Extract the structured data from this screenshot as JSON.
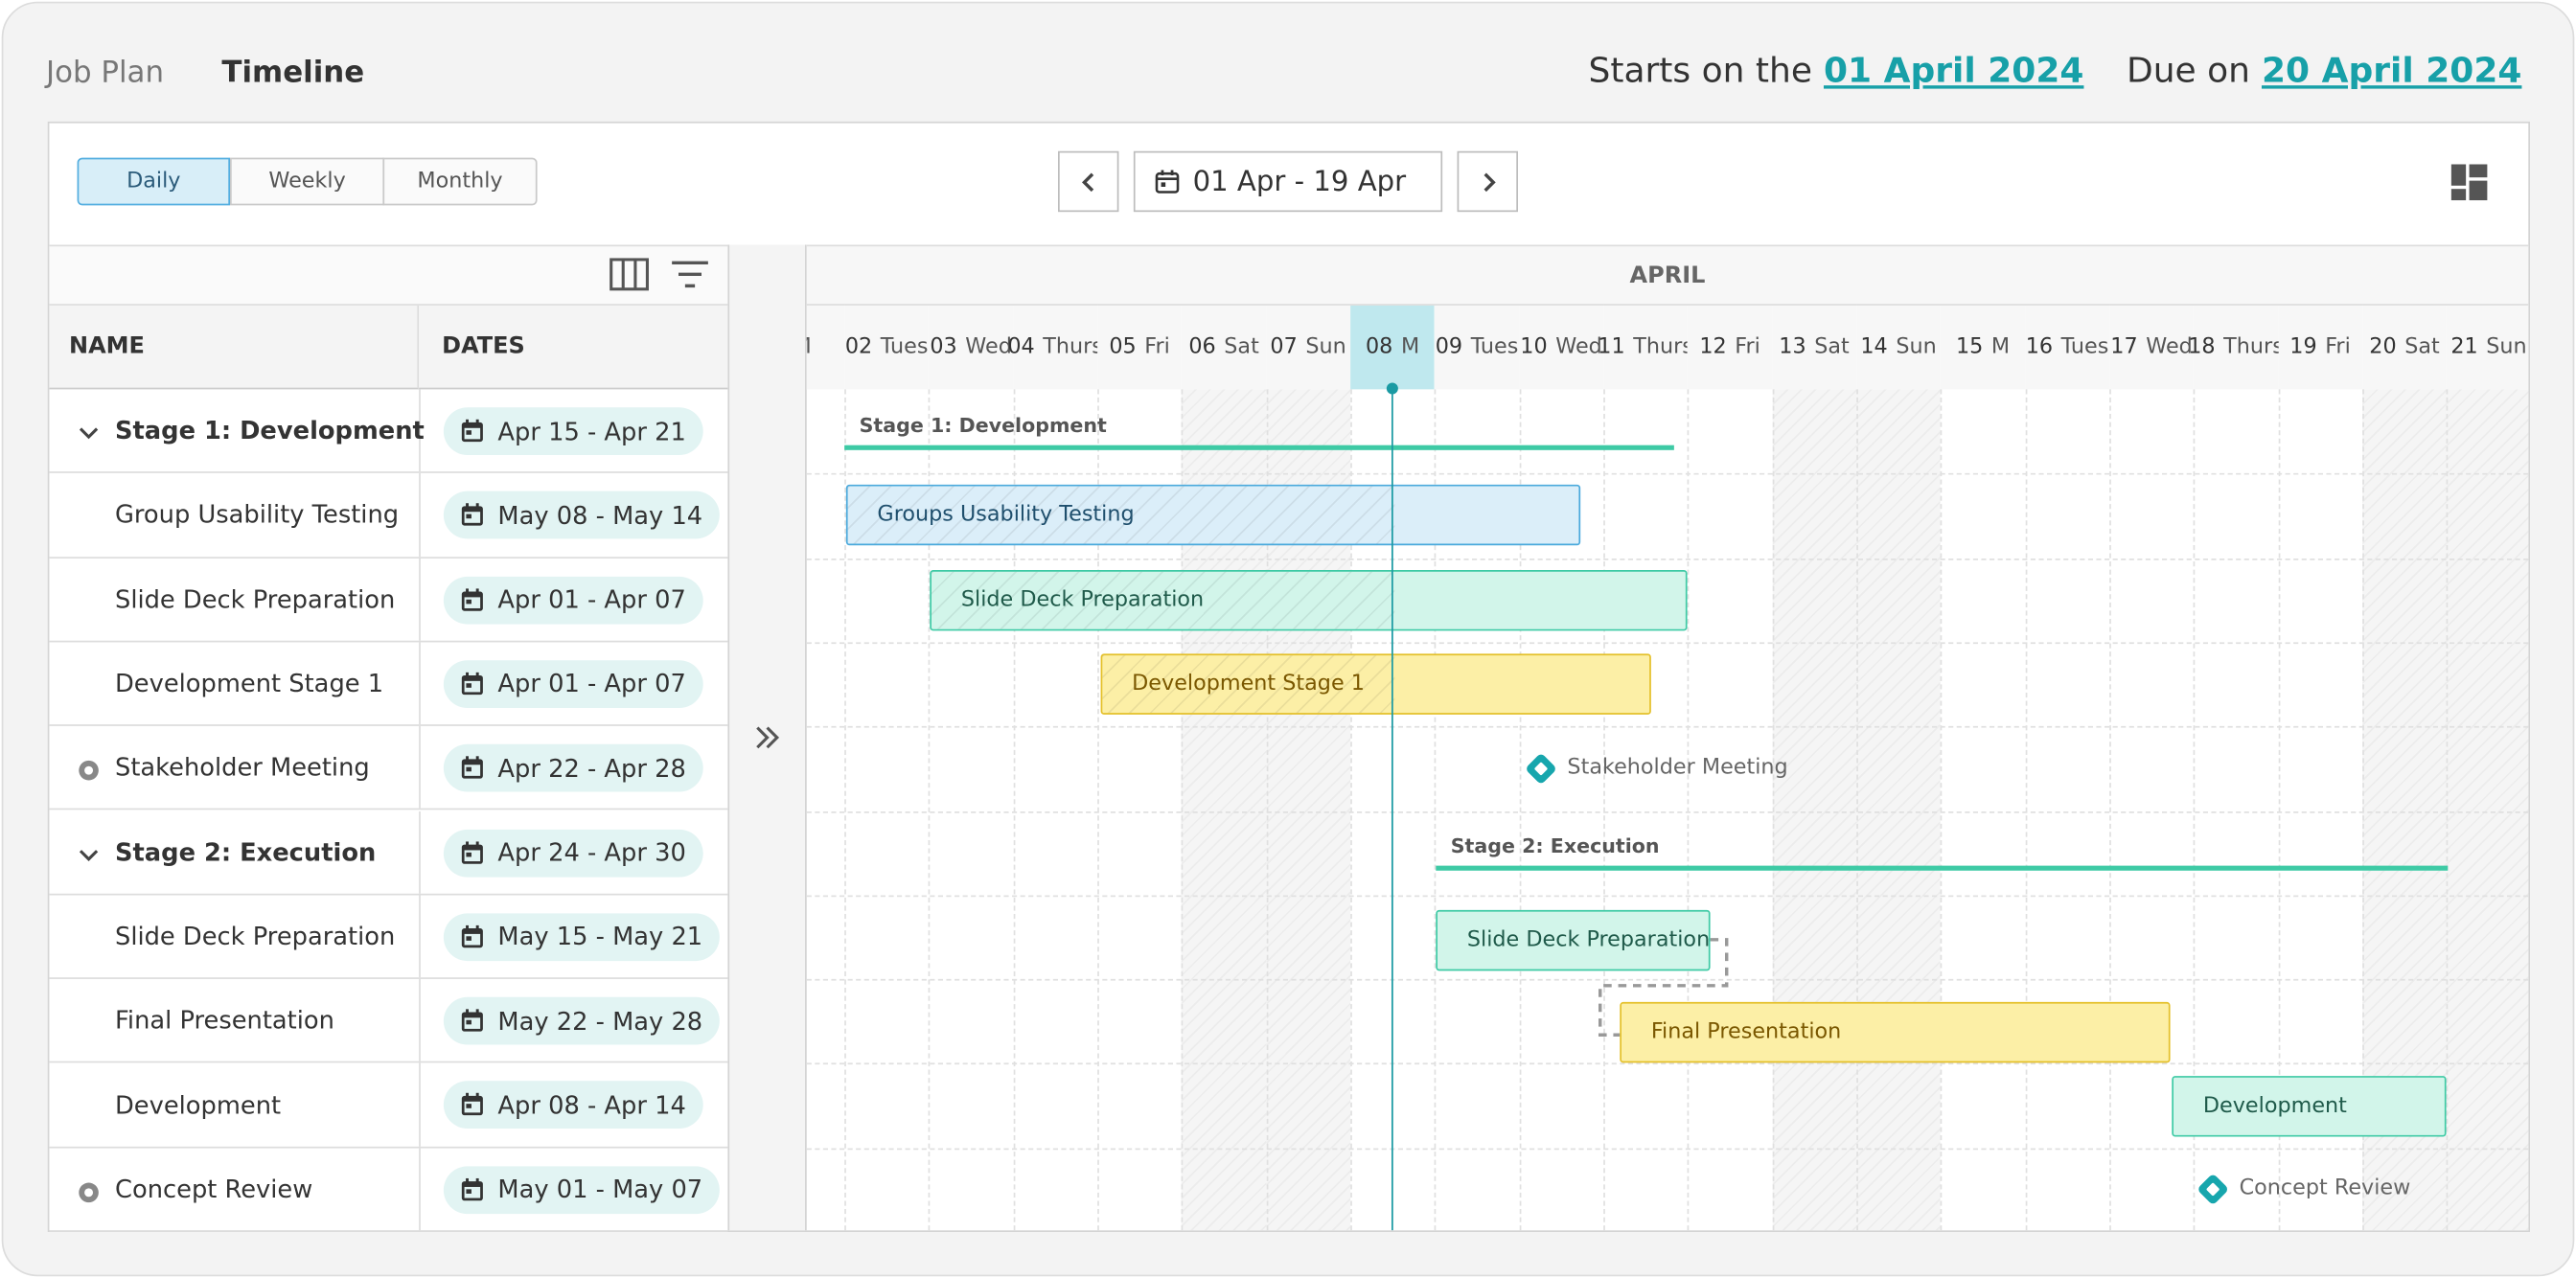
{
  "header": {
    "tabs": [
      "Job Plan",
      "Timeline"
    ],
    "start_label": "Starts on the",
    "start_date": "01 April 2024",
    "due_label": "Due on",
    "due_date": "20 April 2024"
  },
  "toolbar": {
    "views": [
      {
        "label": "Daily",
        "active": true
      },
      {
        "label": "Weekly"
      },
      {
        "label": "Monthly"
      }
    ],
    "date_range": "01 Apr - 19 Apr"
  },
  "grid": {
    "columns": [
      "NAME",
      "DATES"
    ],
    "rows": [
      {
        "name": "Stage 1: Development",
        "dates": "Apr 15 - Apr 21",
        "kind": "group"
      },
      {
        "name": "Group Usability Testing",
        "dates": "May 08 - May 14",
        "kind": "task"
      },
      {
        "name": "Slide Deck Preparation",
        "dates": "Apr 01 - Apr 07",
        "kind": "task"
      },
      {
        "name": "Development Stage 1",
        "dates": "Apr 01 - Apr 07",
        "kind": "task"
      },
      {
        "name": "Stakeholder Meeting",
        "dates": "Apr 22 - Apr 28",
        "kind": "milestone"
      },
      {
        "name": "Stage 2: Execution",
        "dates": "Apr 24 - Apr 30",
        "kind": "group"
      },
      {
        "name": "Slide Deck Preparation",
        "dates": "May 15 - May 21",
        "kind": "task"
      },
      {
        "name": "Final Presentation",
        "dates": "May 22 - May 28",
        "kind": "task"
      },
      {
        "name": "Development",
        "dates": "Apr 08 - Apr 14",
        "kind": "task"
      },
      {
        "name": "Concept Review",
        "dates": "May 01 - May 07",
        "kind": "milestone"
      }
    ]
  },
  "timeline": {
    "month": "APRIL",
    "days": [
      {
        "day": "M"
      },
      {
        "num": "02",
        "day": "Tues"
      },
      {
        "num": "03",
        "day": "Wed"
      },
      {
        "num": "04",
        "day": "Thurs"
      },
      {
        "num": "05",
        "day": "Fri"
      },
      {
        "num": "06",
        "day": "Sat",
        "weekend": true
      },
      {
        "num": "07",
        "day": "Sun",
        "weekend": true
      },
      {
        "num": "08",
        "day": "M",
        "today": true
      },
      {
        "num": "09",
        "day": "Tues"
      },
      {
        "num": "10",
        "day": "Wed"
      },
      {
        "num": "11",
        "day": "Thurs"
      },
      {
        "num": "12",
        "day": "Fri"
      },
      {
        "num": "13",
        "day": "Sat",
        "weekend": true
      },
      {
        "num": "14",
        "day": "Sun",
        "weekend": true
      },
      {
        "num": "15",
        "day": "M"
      },
      {
        "num": "16",
        "day": "Tues"
      },
      {
        "num": "17",
        "day": "Wed"
      },
      {
        "num": "18",
        "day": "Thurs"
      },
      {
        "num": "19",
        "day": "Fri"
      },
      {
        "num": "20",
        "day": "Sat",
        "weekend": true
      },
      {
        "num": "21",
        "day": "Sun",
        "weekend": true
      }
    ]
  },
  "gantt": {
    "items": [
      {
        "label": "Stage 1: Development",
        "kind": "summary"
      },
      {
        "label": "Groups Usability Testing",
        "kind": "bar",
        "color": "blue"
      },
      {
        "label": "Slide Deck Preparation",
        "kind": "bar",
        "color": "green"
      },
      {
        "label": "Development Stage 1",
        "kind": "bar",
        "color": "yellow"
      },
      {
        "label": "Stakeholder Meeting",
        "kind": "milestone"
      },
      {
        "label": "Stage 2: Execution",
        "kind": "summary"
      },
      {
        "label": "Slide Deck Preparation",
        "kind": "bar",
        "color": "green"
      },
      {
        "label": "Final Presentation",
        "kind": "bar",
        "color": "yellow"
      },
      {
        "label": "Development",
        "kind": "bar",
        "color": "green"
      },
      {
        "label": "Concept Review",
        "kind": "milestone"
      }
    ]
  }
}
